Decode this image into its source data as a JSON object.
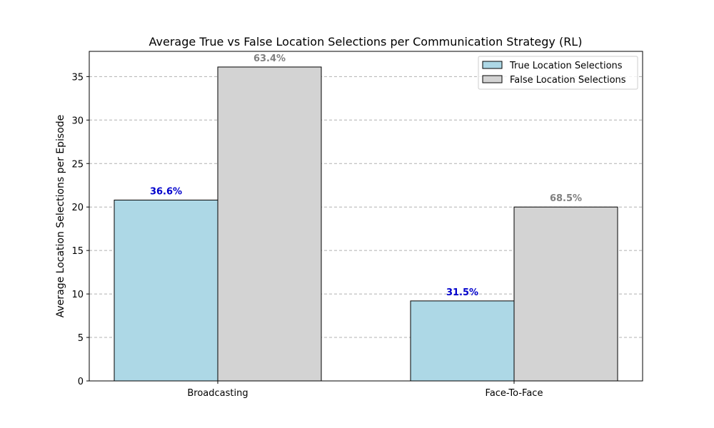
{
  "chart_data": {
    "type": "bar",
    "title": "Average True vs False Location Selections per Communication Strategy (RL)",
    "xlabel": "",
    "ylabel": "Average Location Selections per Episode",
    "categories": [
      "Broadcasting",
      "Face-To-Face"
    ],
    "series": [
      {
        "name": "True Location Selections",
        "values": [
          20.8,
          9.2
        ],
        "labels": [
          "36.6%",
          "31.5%"
        ],
        "color": "#add8e6",
        "label_color": "#0000cd"
      },
      {
        "name": "False Location Selections",
        "values": [
          36.1,
          20.0
        ],
        "labels": [
          "63.4%",
          "68.5%"
        ],
        "color": "#d3d3d3",
        "label_color": "#808080"
      }
    ],
    "ylim": [
      0,
      37.9
    ],
    "yticks": [
      0,
      5,
      10,
      15,
      20,
      25,
      30,
      35
    ],
    "grid": "y-dashed",
    "legend_position": "top-right"
  }
}
